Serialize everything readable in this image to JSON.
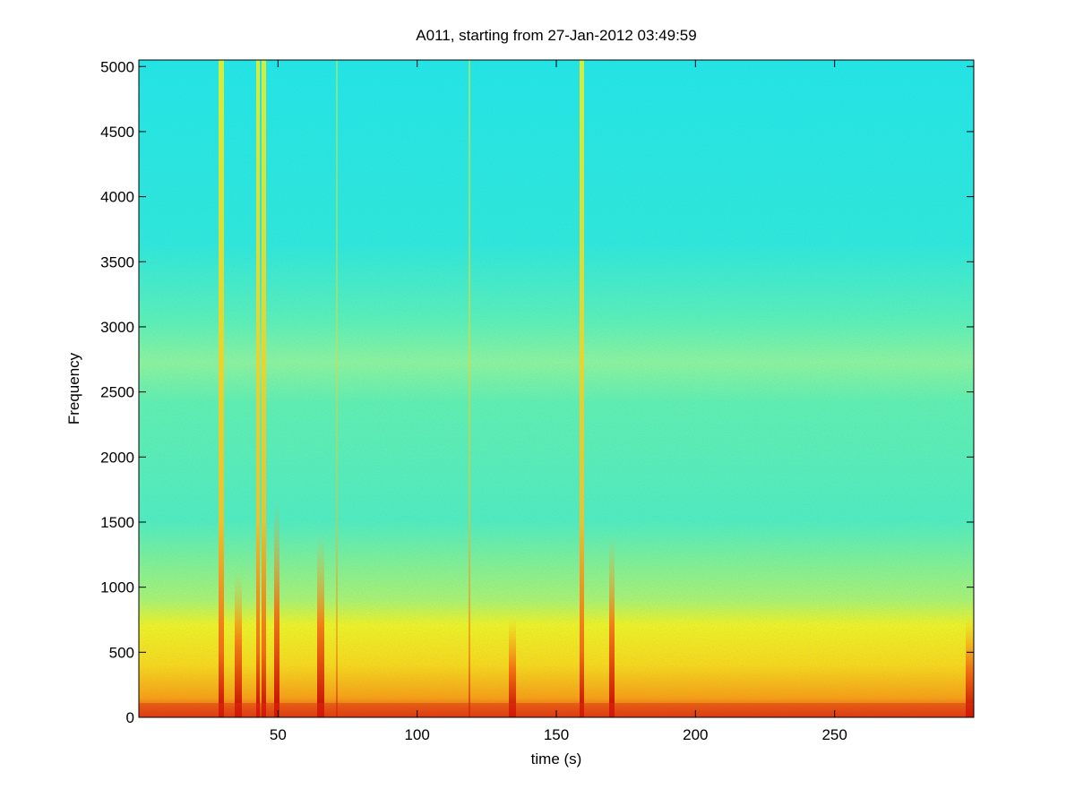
{
  "chart_data": {
    "type": "spectrogram",
    "title": "A011, starting from 27-Jan-2012 03:49:59",
    "xlabel": "time (s)",
    "ylabel": "Frequency",
    "xlim": [
      0,
      300
    ],
    "xticks": [
      50,
      100,
      150,
      200,
      250
    ],
    "ylim": [
      0,
      5050
    ],
    "yticks": [
      0,
      500,
      1000,
      1500,
      2000,
      2500,
      3000,
      3500,
      4000,
      4500,
      5000
    ],
    "grid": false
  }
}
